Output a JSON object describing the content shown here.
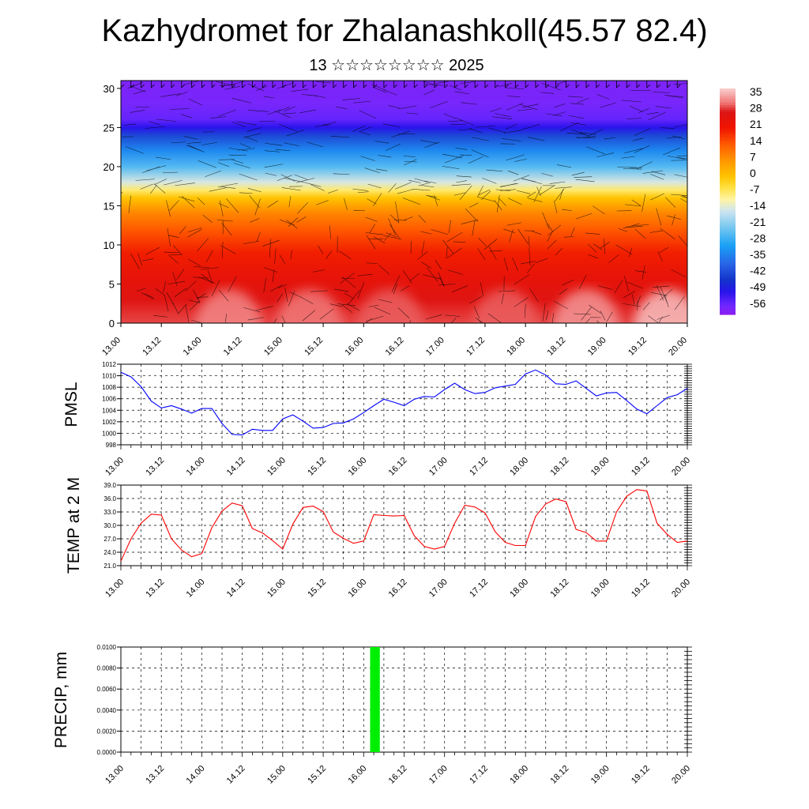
{
  "title": "Kazhydromet for Zhalanashkoll(45.57 82.4)",
  "subtitle": "13 ☆☆☆☆☆☆☆☆ 2025",
  "time_ticks": [
    "13.00",
    "13.12",
    "14.00",
    "14.12",
    "15.00",
    "15.12",
    "16.00",
    "16.12",
    "17.00",
    "17.12",
    "18.00",
    "18.12",
    "19.00",
    "19.12",
    "20.00"
  ],
  "chart_data": [
    {
      "type": "heatmap",
      "panel": "vertical temperature section with wind barbs",
      "y_ticks": [
        "0",
        "5",
        "10",
        "15",
        "20",
        "25",
        "30"
      ],
      "ylim": [
        0,
        31
      ],
      "colorbar": {
        "labels": [
          "35",
          "28",
          "21",
          "14",
          "7",
          "0",
          "-7",
          "-14",
          "-21",
          "-28",
          "-35",
          "-42",
          "-49",
          "-56"
        ],
        "range": [
          -60,
          38
        ]
      },
      "levels": [
        0,
        3,
        6,
        9,
        12,
        14,
        15,
        16,
        17,
        18,
        20,
        22,
        24,
        25,
        26,
        28,
        31
      ],
      "level_temps": [
        30,
        27,
        24,
        20,
        14,
        9,
        5,
        0,
        -7,
        -14,
        -25,
        -33,
        -42,
        -50,
        -55,
        -57,
        -58
      ],
      "warm_spots": [
        {
          "x": 1.33,
          "temp": 33
        },
        {
          "x": 2.33,
          "temp": 32
        },
        {
          "x": 3.33,
          "temp": 31
        },
        {
          "x": 4.75,
          "temp": 31
        },
        {
          "x": 5.75,
          "temp": 34
        },
        {
          "x": 6.75,
          "temp": 37
        }
      ]
    },
    {
      "type": "line",
      "ylabel": "PMSL",
      "ylim": [
        998,
        1012
      ],
      "y_ticks": [
        "1012",
        "1010",
        "1008",
        "1006",
        "1004",
        "1002",
        "1000",
        "998"
      ],
      "color": "#0000ff",
      "x": [
        0,
        0.125,
        0.25,
        0.375,
        0.5,
        0.625,
        0.75,
        0.875,
        1,
        1.125,
        1.25,
        1.375,
        1.5,
        1.625,
        1.75,
        1.875,
        2,
        2.125,
        2.25,
        2.375,
        2.5,
        2.625,
        2.75,
        2.875,
        3,
        3.125,
        3.25,
        3.375,
        3.5,
        3.625,
        3.75,
        3.875,
        4,
        4.125,
        4.25,
        4.375,
        4.5,
        4.625,
        4.75,
        4.875,
        5,
        5.125,
        5.25,
        5.375,
        5.5,
        5.625,
        5.75,
        5.875,
        6,
        6.125,
        6.25,
        6.375,
        6.5,
        6.625,
        6.75,
        6.875,
        7
      ],
      "values": [
        1010.6,
        1009.8,
        1008.1,
        1005.6,
        1004.4,
        1004.8,
        1004.2,
        1003.5,
        1004.3,
        1004.3,
        1001.7,
        999.8,
        999.7,
        1000.7,
        1000.5,
        1000.5,
        1002.5,
        1003.2,
        1002.1,
        1000.9,
        1001.0,
        1001.7,
        1001.8,
        1002.5,
        1003.6,
        1004.8,
        1005.9,
        1005.4,
        1004.8,
        1005.9,
        1006.4,
        1006.3,
        1007.6,
        1008.7,
        1007.6,
        1006.9,
        1007.1,
        1007.9,
        1008.2,
        1008.5,
        1010.3,
        1011.0,
        1010.1,
        1008.6,
        1008.5,
        1009.1,
        1007.8,
        1006.5,
        1007.0,
        1007.1,
        1005.7,
        1004.2,
        1003.4,
        1004.8,
        1006.2,
        1006.7,
        1007.8
      ]
    },
    {
      "type": "line",
      "ylabel": "TEMP at 2 M",
      "ylim": [
        21,
        39
      ],
      "y_ticks": [
        "39.0",
        "36.0",
        "33.0",
        "30.0",
        "27.0",
        "24.0",
        "21.0"
      ],
      "color": "#ff0000",
      "x": [
        0,
        0.125,
        0.25,
        0.375,
        0.5,
        0.625,
        0.75,
        0.875,
        1,
        1.125,
        1.25,
        1.375,
        1.5,
        1.625,
        1.75,
        1.875,
        2,
        2.125,
        2.25,
        2.375,
        2.5,
        2.625,
        2.75,
        2.875,
        3,
        3.125,
        3.25,
        3.375,
        3.5,
        3.625,
        3.75,
        3.875,
        4,
        4.125,
        4.25,
        4.375,
        4.5,
        4.625,
        4.75,
        4.875,
        5,
        5.125,
        5.25,
        5.375,
        5.5,
        5.625,
        5.75,
        5.875,
        6,
        6.125,
        6.25,
        6.375,
        6.5,
        6.625,
        6.75,
        6.875,
        7
      ],
      "values": [
        22.0,
        27.0,
        30.5,
        32.5,
        32.3,
        27.0,
        24.5,
        23.0,
        23.7,
        29.5,
        33.2,
        35.0,
        34.4,
        29.3,
        28.3,
        26.6,
        24.7,
        30.3,
        34.0,
        34.3,
        33.1,
        28.5,
        27.1,
        26.0,
        26.5,
        32.4,
        32.2,
        32.1,
        32.2,
        27.7,
        25.3,
        24.7,
        25.3,
        30.5,
        34.5,
        34.1,
        32.8,
        28.6,
        26.2,
        25.5,
        25.5,
        32.0,
        34.8,
        35.9,
        35.3,
        29.1,
        28.4,
        26.5,
        26.5,
        33.0,
        36.5,
        38.0,
        37.7,
        30.5,
        28.0,
        26.2,
        26.5
      ]
    },
    {
      "type": "bar",
      "ylabel": "PRECIP, mm",
      "ylim": [
        0,
        0.01
      ],
      "y_ticks": [
        "0.0100",
        "0.0080",
        "0.0060",
        "0.0040",
        "0.0020",
        "0.0000"
      ],
      "color": "#00ee00",
      "bars": [
        {
          "x_start": 3.08,
          "x_end": 3.2,
          "value": 0.01
        }
      ]
    }
  ]
}
